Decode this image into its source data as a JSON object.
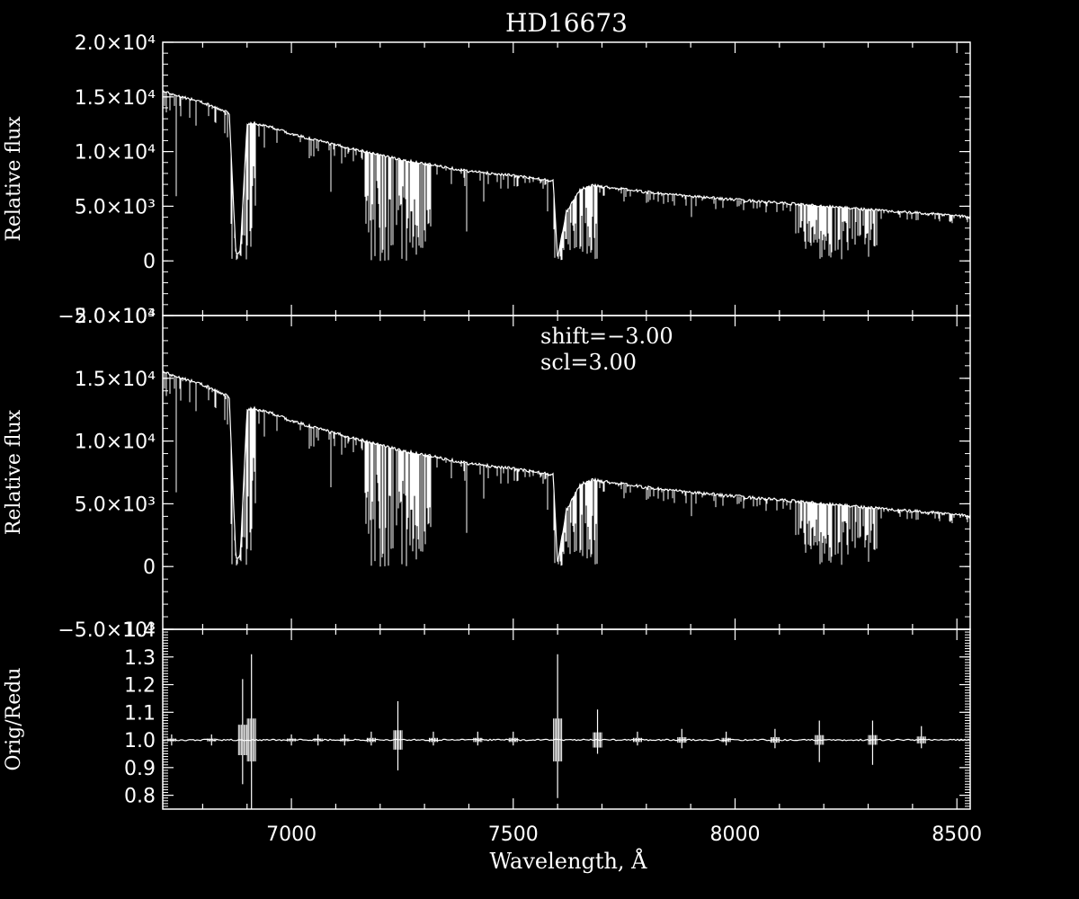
{
  "title": "HD16673",
  "xlabel": "Wavelength, Å",
  "x_tick_labels": [
    "7000",
    "7500",
    "8000",
    "8500"
  ],
  "annotation": {
    "shift": "shift=−3.00",
    "scl": "scl=3.00"
  },
  "chart_data": [
    {
      "type": "line",
      "title": "HD16673",
      "ylabel": "Relative flux",
      "xlim": [
        6710,
        8530
      ],
      "ylim": [
        -5000,
        20000
      ],
      "ytick_labels": [
        "−5.0×10³",
        "0",
        "5.0×10³",
        "1.0×10⁴",
        "1.5×10⁴",
        "2.0×10⁴"
      ],
      "x": [
        6710,
        6800,
        6860,
        6875,
        6885,
        6900,
        6915,
        6950,
        7000,
        7100,
        7200,
        7250,
        7300,
        7400,
        7500,
        7590,
        7600,
        7620,
        7650,
        7680,
        7700,
        7800,
        7900,
        8000,
        8100,
        8200,
        8300,
        8400,
        8500,
        8530
      ],
      "y": [
        15500,
        14500,
        13500,
        500,
        1000,
        12500,
        12600,
        12300,
        11600,
        10600,
        9700,
        9200,
        8900,
        8200,
        7800,
        7300,
        200,
        4500,
        6500,
        6900,
        6800,
        6300,
        5900,
        5600,
        5300,
        5000,
        4700,
        4400,
        4150,
        4000
      ]
    },
    {
      "type": "line",
      "ylabel": "Relative flux",
      "xlim": [
        6710,
        8530
      ],
      "ylim": [
        -5000,
        20000
      ],
      "ytick_labels": [
        "−5.0×10³",
        "0",
        "5.0×10³",
        "1.0×10⁴",
        "1.5×10⁴",
        "2.0×10⁴"
      ],
      "x": [
        6710,
        6800,
        6860,
        6875,
        6885,
        6900,
        6915,
        6950,
        7000,
        7100,
        7200,
        7250,
        7300,
        7400,
        7500,
        7590,
        7600,
        7620,
        7650,
        7680,
        7700,
        7800,
        7900,
        8000,
        8100,
        8200,
        8300,
        8400,
        8500,
        8530
      ],
      "y": [
        15500,
        14500,
        13500,
        500,
        1000,
        12500,
        12600,
        12300,
        11600,
        10600,
        9700,
        9200,
        8900,
        8200,
        7800,
        7300,
        200,
        4500,
        6500,
        6900,
        6800,
        6300,
        5900,
        5600,
        5300,
        5000,
        4700,
        4400,
        4150,
        4000
      ]
    },
    {
      "type": "line",
      "ylabel": "Orig/Redu",
      "xlabel": "Wavelength, Å",
      "xlim": [
        6710,
        8530
      ],
      "ylim": [
        0.75,
        1.4
      ],
      "ytick_labels": [
        "0.8",
        "0.9",
        "1.0",
        "1.1",
        "1.2",
        "1.3",
        "1.4"
      ],
      "baseline": 1.0,
      "spikes": [
        {
          "x": 6730,
          "top": 1.02,
          "bottom": 0.98
        },
        {
          "x": 6820,
          "top": 1.02,
          "bottom": 0.98
        },
        {
          "x": 6890,
          "top": 1.22,
          "bottom": 0.84
        },
        {
          "x": 6910,
          "top": 1.31,
          "bottom": 0.75
        },
        {
          "x": 7000,
          "top": 1.02,
          "bottom": 0.98
        },
        {
          "x": 7060,
          "top": 1.02,
          "bottom": 0.98
        },
        {
          "x": 7120,
          "top": 1.02,
          "bottom": 0.98
        },
        {
          "x": 7180,
          "top": 1.03,
          "bottom": 0.98
        },
        {
          "x": 7240,
          "top": 1.14,
          "bottom": 0.89
        },
        {
          "x": 7320,
          "top": 1.03,
          "bottom": 0.98
        },
        {
          "x": 7420,
          "top": 1.03,
          "bottom": 0.98
        },
        {
          "x": 7500,
          "top": 1.03,
          "bottom": 0.98
        },
        {
          "x": 7600,
          "top": 1.31,
          "bottom": 0.79
        },
        {
          "x": 7690,
          "top": 1.11,
          "bottom": 0.95
        },
        {
          "x": 7780,
          "top": 1.03,
          "bottom": 0.98
        },
        {
          "x": 7880,
          "top": 1.04,
          "bottom": 0.97
        },
        {
          "x": 7980,
          "top": 1.03,
          "bottom": 0.98
        },
        {
          "x": 8090,
          "top": 1.04,
          "bottom": 0.97
        },
        {
          "x": 8190,
          "top": 1.07,
          "bottom": 0.92
        },
        {
          "x": 8310,
          "top": 1.07,
          "bottom": 0.91
        },
        {
          "x": 8420,
          "top": 1.05,
          "bottom": 0.97
        }
      ]
    }
  ]
}
